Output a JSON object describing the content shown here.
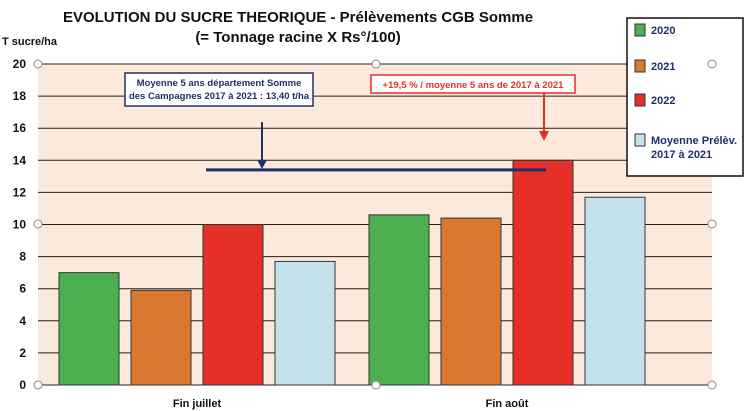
{
  "chart_data": {
    "type": "bar",
    "title": "EVOLUTION DU SUCRE THEORIQUE - Prélèvements CGB Somme",
    "subtitle": "(= Tonnage racine X Rs°/100)",
    "ylabel": "T sucre/ha",
    "ylim": [
      0,
      20
    ],
    "yticks": [
      "0",
      "2",
      "4",
      "6",
      "8",
      "10",
      "12",
      "14",
      "16",
      "18",
      "20"
    ],
    "grid": true,
    "legend_position": "right",
    "categories": [
      "Fin juillet",
      "Fin août"
    ],
    "series": [
      {
        "name": "2020",
        "color": "#4caf50",
        "values": [
          7.0,
          10.6
        ]
      },
      {
        "name": "2021",
        "color": "#d9782e",
        "values": [
          5.9,
          10.4
        ]
      },
      {
        "name": "2022",
        "color": "#e5302a",
        "values": [
          10.0,
          14.0
        ]
      },
      {
        "name": "Moyenne Prélèv. 2017 à 2021",
        "color": "#c4e2ec",
        "values": [
          7.7,
          11.7
        ]
      }
    ],
    "reference_line": {
      "value": 13.4
    },
    "annotations": [
      {
        "text_lines": [
          "Moyenne 5 ans département Somme",
          "des Campagnes 2017 à 2021 : 13,40 t/ha"
        ],
        "color": "#1f2f6b"
      },
      {
        "text_lines": [
          "+19,5 % / moyenne 5 ans de 2017 à 2021"
        ],
        "color": "#e5302a"
      }
    ]
  },
  "colors": {
    "plot_background": "#fbe9dc",
    "grid": "#222222",
    "reference_line": "#1f2f6b",
    "bar_border": "#333333"
  }
}
